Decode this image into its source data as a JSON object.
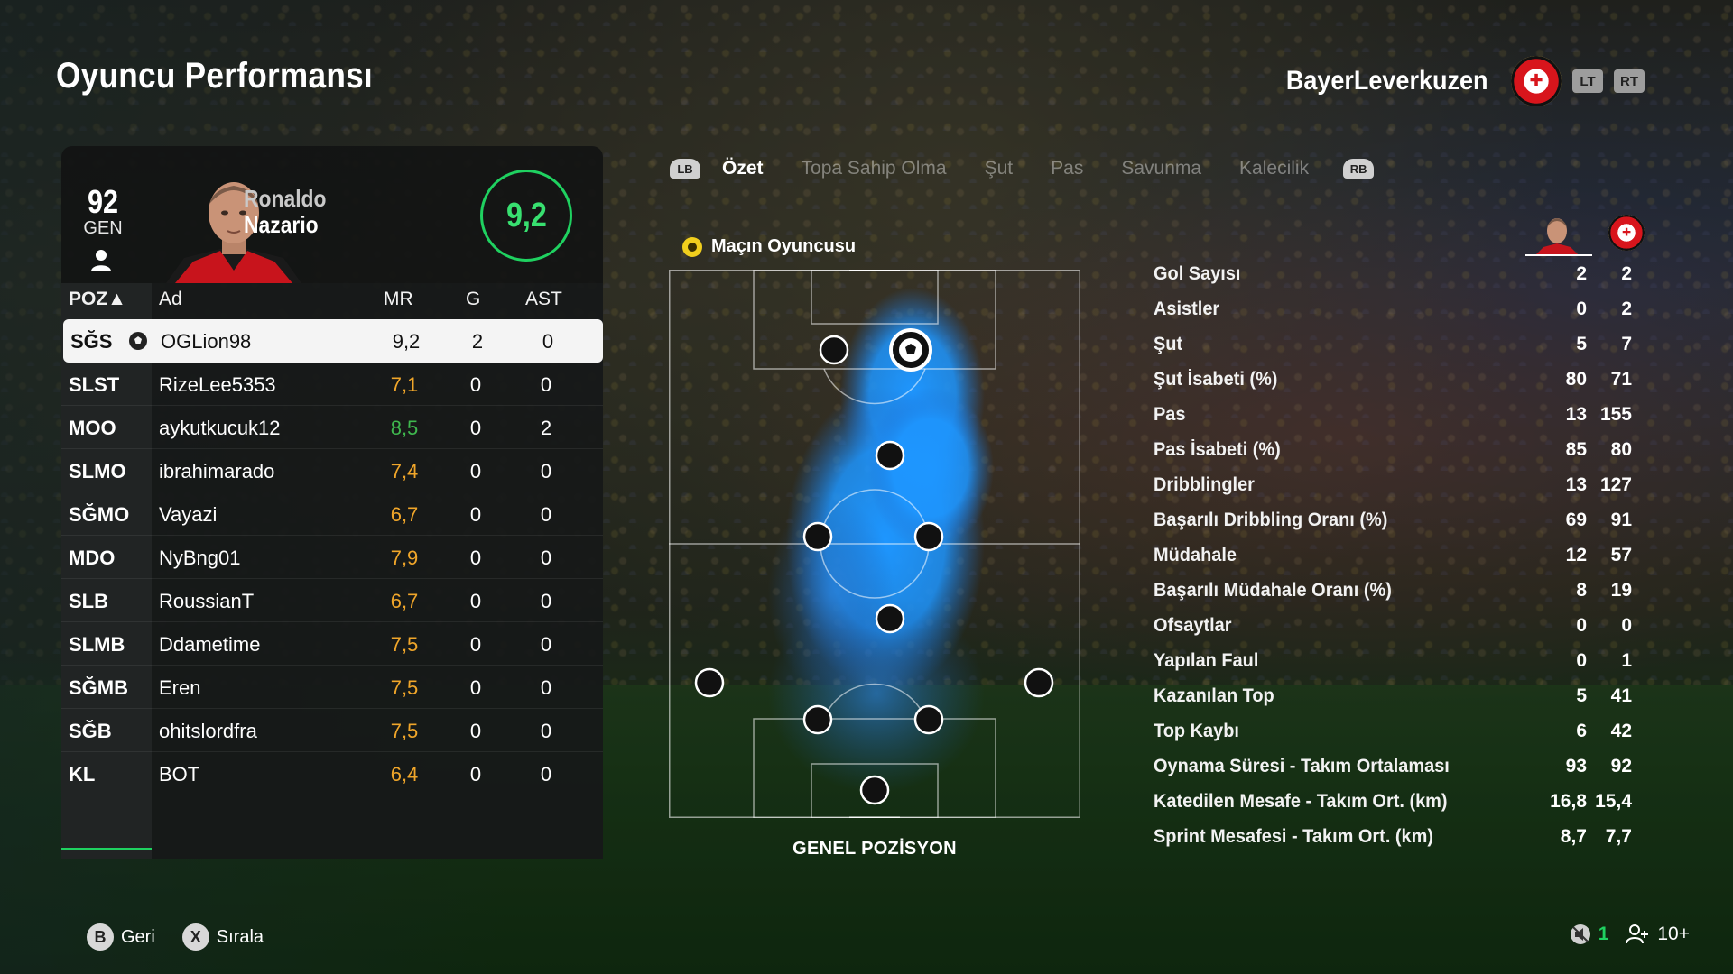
{
  "header": {
    "title": "Oyuncu Performansı",
    "team_name": "BayerLeverkuzen",
    "lt_label": "LT",
    "rt_label": "RT"
  },
  "player": {
    "overall": "92",
    "overall_label": "GEN",
    "first_name": "Ronaldo",
    "last_name": "Nazario",
    "rating": "9,2"
  },
  "table": {
    "columns": [
      "POZ▲",
      "Ad",
      "MR",
      "G",
      "AST"
    ],
    "rows": [
      {
        "poz": "SĞS",
        "name": "OGLion98",
        "mr": "9,2",
        "g": "2",
        "ast": "0"
      },
      {
        "poz": "SLST",
        "name": "RizeLee5353",
        "mr": "7,1",
        "g": "0",
        "ast": "0"
      },
      {
        "poz": "MOO",
        "name": "aykutkucuk12",
        "mr": "8,5",
        "g": "0",
        "ast": "2"
      },
      {
        "poz": "SLMO",
        "name": "ibrahimarado",
        "mr": "7,4",
        "g": "0",
        "ast": "0"
      },
      {
        "poz": "SĞMO",
        "name": "Vayazi",
        "mr": "6,7",
        "g": "0",
        "ast": "0"
      },
      {
        "poz": "MDO",
        "name": "NyBng01",
        "mr": "7,9",
        "g": "0",
        "ast": "0"
      },
      {
        "poz": "SLB",
        "name": "RoussianT",
        "mr": "6,7",
        "g": "0",
        "ast": "0"
      },
      {
        "poz": "SLMB",
        "name": "Ddametime",
        "mr": "7,5",
        "g": "0",
        "ast": "0"
      },
      {
        "poz": "SĞMB",
        "name": "Eren",
        "mr": "7,5",
        "g": "0",
        "ast": "0"
      },
      {
        "poz": "SĞB",
        "name": "ohitslordfra",
        "mr": "7,5",
        "g": "0",
        "ast": "0"
      },
      {
        "poz": "KL",
        "name": "BOT",
        "mr": "6,4",
        "g": "0",
        "ast": "0"
      }
    ]
  },
  "tabs": {
    "lb": "LB",
    "rb": "RB",
    "items": [
      "Özet",
      "Topa Sahip Olma",
      "Şut",
      "Pas",
      "Savunma",
      "Kalecilik"
    ]
  },
  "motm_label": "Maçın Oyuncusu",
  "position_label": "GENEL POZİSYON",
  "stats": [
    {
      "label": "Gol Sayısı",
      "player": "2",
      "team": "2"
    },
    {
      "label": "Asistler",
      "player": "0",
      "team": "2"
    },
    {
      "label": "Şut",
      "player": "5",
      "team": "7"
    },
    {
      "label": "Şut İsabeti (%)",
      "player": "80",
      "team": "71"
    },
    {
      "label": "Pas",
      "player": "13",
      "team": "155"
    },
    {
      "label": "Pas İsabeti (%)",
      "player": "85",
      "team": "80"
    },
    {
      "label": "Dribblingler",
      "player": "13",
      "team": "127"
    },
    {
      "label": "Başarılı Dribbling Oranı (%)",
      "player": "69",
      "team": "91"
    },
    {
      "label": "Müdahale",
      "player": "12",
      "team": "57"
    },
    {
      "label": "Başarılı Müdahale Oranı (%)",
      "player": "8",
      "team": "19"
    },
    {
      "label": "Ofsaytlar",
      "player": "0",
      "team": "0"
    },
    {
      "label": "Yapılan Faul",
      "player": "0",
      "team": "1"
    },
    {
      "label": "Kazanılan Top",
      "player": "5",
      "team": "41"
    },
    {
      "label": "Top Kaybı",
      "player": "6",
      "team": "42"
    },
    {
      "label": "Oynama Süresi - Takım Ortalaması",
      "player": "93",
      "team": "92"
    },
    {
      "label": "Katedilen Mesafe - Takım Ort. (km)",
      "player": "16,8",
      "team": "15,4"
    },
    {
      "label": "Sprint Mesafesi - Takım Ort. (km)",
      "player": "8,7",
      "team": "7,7"
    }
  ],
  "footer": {
    "back_key": "B",
    "back_label": "Geri",
    "sort_key": "X",
    "sort_label": "Sırala",
    "mic_count": "1",
    "party_count": "10+"
  },
  "colors": {
    "accent_green": "#1fd160",
    "rating_orange": "#f0a62a",
    "rating_green": "#3fb84e",
    "heatmap_blue": "#1e96ff"
  }
}
